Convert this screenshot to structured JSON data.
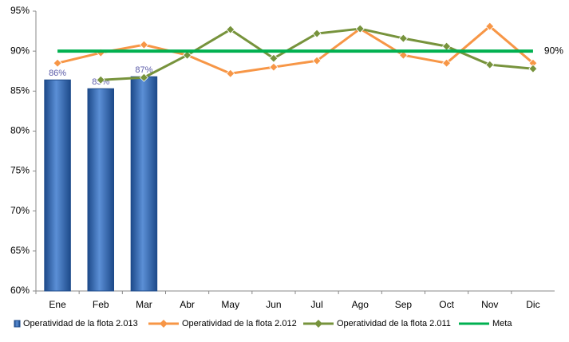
{
  "chart_data": {
    "type": "bar",
    "categories": [
      "Ene",
      "Feb",
      "Mar",
      "Abr",
      "May",
      "Jun",
      "Jul",
      "Ago",
      "Sep",
      "Oct",
      "Nov",
      "Dic"
    ],
    "ylim": [
      60,
      95
    ],
    "yticks": [
      {
        "value": 60,
        "label": "60%"
      },
      {
        "value": 65,
        "label": "65%"
      },
      {
        "value": 70,
        "label": "70%"
      },
      {
        "value": 75,
        "label": "75%"
      },
      {
        "value": 80,
        "label": "80%"
      },
      {
        "value": 85,
        "label": "85%"
      },
      {
        "value": 90,
        "label": "90%"
      },
      {
        "value": 95,
        "label": "95%"
      }
    ],
    "grid": false,
    "legend": "bottom",
    "series": [
      {
        "name": "Operatividad de la flota 2.013",
        "type": "bar",
        "color": "#2f64ad",
        "values": [
          86.4,
          85.3,
          86.8,
          null,
          null,
          null,
          null,
          null,
          null,
          null,
          null,
          null
        ],
        "value_labels": [
          "86%",
          "85%",
          "87%",
          null,
          null,
          null,
          null,
          null,
          null,
          null,
          null,
          null
        ]
      },
      {
        "name": "Operatividad de la flota 2.012",
        "type": "line",
        "color": "#f79646",
        "values": [
          88.5,
          89.8,
          90.8,
          89.5,
          87.2,
          88.0,
          88.8,
          92.8,
          89.5,
          88.5,
          93.1,
          88.5
        ]
      },
      {
        "name": "Operatividad de la flota 2.011",
        "type": "line",
        "color": "#77933c",
        "values": [
          null,
          86.4,
          86.7,
          89.5,
          92.7,
          89.1,
          92.2,
          92.8,
          91.6,
          90.6,
          88.3,
          87.8
        ]
      },
      {
        "name": "Meta",
        "type": "line",
        "color": "#00b050",
        "markers": false,
        "values": [
          90,
          90,
          90,
          90,
          90,
          90,
          90,
          90,
          90,
          90,
          90,
          90
        ],
        "value_labels": [
          null,
          null,
          null,
          null,
          null,
          null,
          null,
          null,
          null,
          null,
          null,
          "90%"
        ]
      }
    ]
  }
}
